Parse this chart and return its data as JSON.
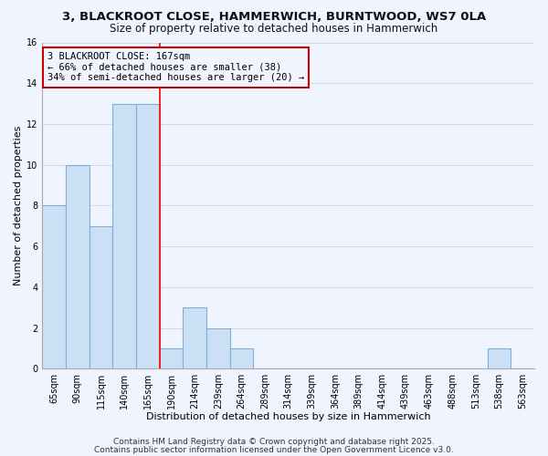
{
  "title_line1": "3, BLACKROOT CLOSE, HAMMERWICH, BURNTWOOD, WS7 0LA",
  "title_line2": "Size of property relative to detached houses in Hammerwich",
  "xlabel": "Distribution of detached houses by size in Hammerwich",
  "ylabel": "Number of detached properties",
  "bin_labels": [
    "65sqm",
    "90sqm",
    "115sqm",
    "140sqm",
    "165sqm",
    "190sqm",
    "214sqm",
    "239sqm",
    "264sqm",
    "289sqm",
    "314sqm",
    "339sqm",
    "364sqm",
    "389sqm",
    "414sqm",
    "439sqm",
    "463sqm",
    "488sqm",
    "513sqm",
    "538sqm",
    "563sqm"
  ],
  "bar_values": [
    8,
    10,
    7,
    13,
    13,
    1,
    3,
    2,
    1,
    0,
    0,
    0,
    0,
    0,
    0,
    0,
    0,
    0,
    0,
    1,
    0
  ],
  "bar_color": "#cce0f5",
  "bar_edge_color": "#7ab0d8",
  "red_line_index": 4,
  "annotation_line1": "3 BLACKROOT CLOSE: 167sqm",
  "annotation_line2": "← 66% of detached houses are smaller (38)",
  "annotation_line3": "34% of semi-detached houses are larger (20) →",
  "annotation_box_edge": "#cc0000",
  "ylim": [
    0,
    16
  ],
  "yticks": [
    0,
    2,
    4,
    6,
    8,
    10,
    12,
    14,
    16
  ],
  "footer_line1": "Contains HM Land Registry data © Crown copyright and database right 2025.",
  "footer_line2": "Contains public sector information licensed under the Open Government Licence v3.0.",
  "bg_color": "#f0f4ff",
  "grid_color": "#c8d4e8",
  "title_fontsize": 9.5,
  "subtitle_fontsize": 8.5,
  "axis_label_fontsize": 8,
  "tick_fontsize": 7,
  "annotation_fontsize": 7.5,
  "footer_fontsize": 6.5
}
